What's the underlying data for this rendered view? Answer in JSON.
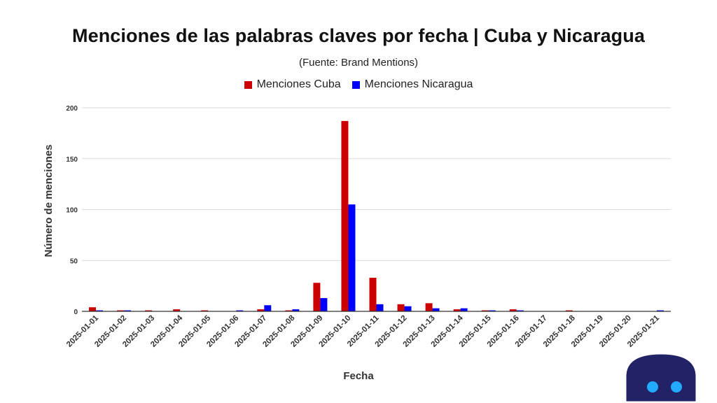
{
  "chart_data": {
    "type": "bar",
    "title": "Menciones de las palabras claves por fecha | Cuba y Nicaragua",
    "subtitle": "(Fuente: Brand Mentions)",
    "xlabel": "Fecha",
    "ylabel": "Número de menciones",
    "ylim": [
      0,
      200
    ],
    "yticks": [
      0,
      50,
      100,
      150,
      200
    ],
    "grid": true,
    "legend_position": "top-center",
    "categories": [
      "2025-01-01",
      "2025-01-02",
      "2025-01-03",
      "2025-01-04",
      "2025-01-05",
      "2025-01-06",
      "2025-01-07",
      "2025-01-08",
      "2025-01-09",
      "2025-01-10",
      "2025-01-11",
      "2025-01-12",
      "2025-01-13",
      "2025-01-14",
      "2025-01-15",
      "2025-01-16",
      "2025-01-17",
      "2025-01-18",
      "2025-01-19",
      "2025-01-20",
      "2025-01-21"
    ],
    "series": [
      {
        "name": "Menciones Cuba",
        "color": "#cc0000",
        "values": [
          4,
          1,
          1,
          2,
          1,
          0,
          2,
          1,
          28,
          187,
          33,
          7,
          8,
          2,
          1,
          2,
          0,
          1,
          0,
          0,
          0
        ]
      },
      {
        "name": "Menciones Nicaragua",
        "color": "#0000ff",
        "values": [
          1,
          1,
          0,
          0,
          0,
          1,
          6,
          2,
          13,
          105,
          7,
          5,
          3,
          3,
          1,
          1,
          0,
          0,
          0,
          0,
          1
        ]
      }
    ]
  },
  "colors": {
    "grid": "#d9d9d9",
    "axis": "#333333",
    "mascot_body": "#222266",
    "mascot_eyes": "#22aaff"
  },
  "icons": {
    "mascot": "robot-mascot-icon"
  }
}
